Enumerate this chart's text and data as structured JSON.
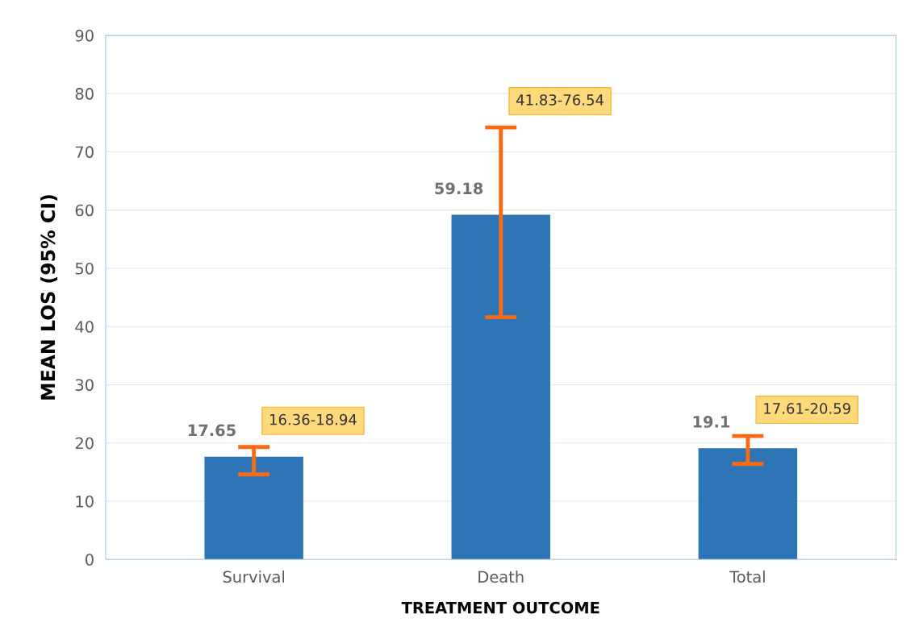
{
  "chart_data": {
    "type": "bar",
    "xlabel": "TREATMENT OUTCOME",
    "ylabel": "MEAN LOS (95% CI)",
    "categories": [
      "Survival",
      "Death",
      "Total"
    ],
    "values": [
      17.65,
      59.18,
      19.1
    ],
    "color": "#2e75b6",
    "errors": [
      [
        14.6,
        19.3
      ],
      [
        41.6,
        74.2
      ],
      [
        16.4,
        21.2
      ]
    ],
    "data_labels": true,
    "annotations": [
      "16.36-18.94",
      "41.83-76.54",
      "17.61-20.59"
    ],
    "ylim": [
      0,
      90
    ],
    "yticks": [
      0,
      10,
      20,
      30,
      40,
      50,
      60,
      70,
      80,
      90
    ],
    "grid": "y"
  }
}
